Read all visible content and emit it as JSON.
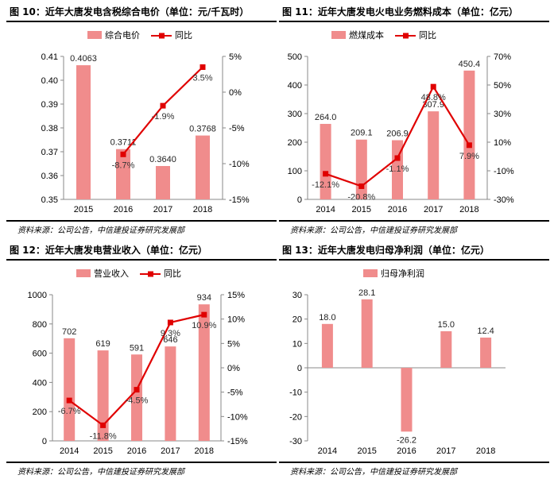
{
  "source_note": "资料来源：公司公告，中信建投证券研究发展部",
  "colors": {
    "bar": "#F08C8C",
    "line": "#E00000"
  },
  "chart_data": [
    {
      "type": "bar",
      "title": "图 10：近年大唐发电含税综合电价（单位：元/千瓦时）",
      "categories": [
        "2015",
        "2016",
        "2017",
        "2018"
      ],
      "series": [
        {
          "name": "综合电价",
          "type": "bar",
          "values": [
            0.4063,
            0.3711,
            0.364,
            0.3768
          ],
          "labels": [
            "0.4063",
            "0.3711",
            "0.3640",
            "0.3768"
          ]
        },
        {
          "name": "同比",
          "type": "line",
          "axis": "right",
          "values": [
            null,
            -8.7,
            -1.9,
            3.5
          ],
          "labels": [
            "",
            "-8.7%",
            "-1.9%",
            "3.5%"
          ]
        }
      ],
      "ylim": [
        0.35,
        0.41
      ],
      "yticks": [
        "0.41",
        "0.40",
        "0.39",
        "0.38",
        "0.37",
        "0.36",
        "0.35"
      ],
      "y2lim": [
        -15,
        5
      ],
      "y2ticks": [
        "5%",
        "0%",
        "-5%",
        "-10%",
        "-15%"
      ],
      "legend": "top"
    },
    {
      "type": "bar",
      "title": "图 11：近年大唐发电火电业务燃料成本（单位：亿元）",
      "categories": [
        "2014",
        "2015",
        "2016",
        "2017",
        "2018"
      ],
      "series": [
        {
          "name": "燃煤成本",
          "type": "bar",
          "values": [
            264.0,
            209.1,
            206.9,
            307.9,
            450.4
          ],
          "labels": [
            "264.0",
            "209.1",
            "206.9",
            "307.9",
            "450.4"
          ]
        },
        {
          "name": "同比",
          "type": "line",
          "axis": "right",
          "values": [
            -12.1,
            -20.8,
            -1.1,
            48.8,
            7.9
          ],
          "labels": [
            "-12.1%",
            "-20.8%",
            "-1.1%",
            "48.8%",
            "7.9%"
          ]
        }
      ],
      "ylim": [
        0,
        500
      ],
      "yticks": [
        "500",
        "400",
        "300",
        "200",
        "100",
        "0"
      ],
      "y2lim": [
        -30,
        70
      ],
      "y2ticks": [
        "70%",
        "50%",
        "30%",
        "10%",
        "-10%",
        "-30%"
      ],
      "legend": "top"
    },
    {
      "type": "bar",
      "title": "图 12：近年大唐发电营业收入（单位：亿元）",
      "categories": [
        "2014",
        "2015",
        "2016",
        "2017",
        "2018"
      ],
      "series": [
        {
          "name": "营业收入",
          "type": "bar",
          "values": [
            702,
            619,
            591,
            646,
            934
          ],
          "labels": [
            "702",
            "619",
            "591",
            "646",
            "934"
          ]
        },
        {
          "name": "同比",
          "type": "line",
          "axis": "right",
          "values": [
            -6.7,
            -11.8,
            -4.5,
            9.3,
            10.9
          ],
          "labels": [
            "-6.7%",
            "-11.8%",
            "-4.5%",
            "9.3%",
            "10.9%"
          ]
        }
      ],
      "ylim": [
        0,
        1000
      ],
      "yticks": [
        "1000",
        "800",
        "600",
        "400",
        "200",
        "0"
      ],
      "y2lim": [
        -15,
        15
      ],
      "y2ticks": [
        "15%",
        "10%",
        "5%",
        "0%",
        "-5%",
        "-10%",
        "-15%"
      ],
      "legend": "top"
    },
    {
      "type": "bar",
      "title": "图 13：近年大唐发电归母净利润（单位：亿元）",
      "categories": [
        "2014",
        "2015",
        "2016",
        "2017",
        "2018"
      ],
      "series": [
        {
          "name": "归母净利润",
          "type": "bar",
          "values": [
            18.0,
            28.1,
            -26.2,
            15.0,
            12.4
          ],
          "labels": [
            "18.0",
            "28.1",
            "-26.2",
            "15.0",
            "12.4"
          ]
        }
      ],
      "ylim": [
        -30,
        30
      ],
      "yticks": [
        "30",
        "20",
        "10",
        "0",
        "-10",
        "-20",
        "-30"
      ],
      "legend": "top"
    }
  ]
}
